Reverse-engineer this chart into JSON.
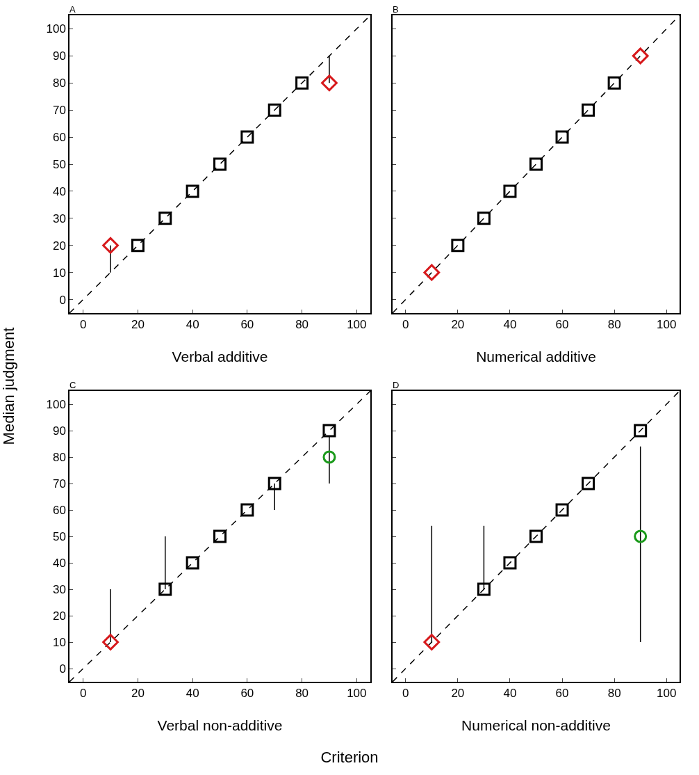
{
  "chart_data": [
    {
      "type": "scatter",
      "title": "A",
      "xlabel": "Verbal additive",
      "ylabel": "Median judgment",
      "xlim": [
        -5,
        105
      ],
      "ylim": [
        -5,
        105
      ],
      "xticks": [
        0,
        20,
        40,
        60,
        80,
        100
      ],
      "yticks": [
        0,
        10,
        20,
        30,
        40,
        50,
        60,
        70,
        80,
        90,
        100
      ],
      "series": [
        {
          "type": "line",
          "color": "#000000",
          "line_style": "dashed",
          "x": [
            -5,
            105
          ],
          "values": [
            -5,
            105
          ]
        },
        {
          "color": "#000000",
          "marker": "square",
          "x": [
            20,
            30,
            40,
            50,
            60,
            70,
            80
          ],
          "values": [
            20,
            30,
            40,
            50,
            60,
            70,
            80
          ]
        },
        {
          "color": "#d7191c",
          "marker": "diamond",
          "x": [
            10,
            90
          ],
          "values": [
            20,
            80
          ],
          "errors": [
            [
              10,
              20
            ],
            [
              80,
              90
            ]
          ]
        }
      ]
    },
    {
      "type": "scatter",
      "title": "B",
      "xlabel": "Numerical additive",
      "xlim": [
        -5,
        105
      ],
      "ylim": [
        -5,
        105
      ],
      "xticks": [
        0,
        20,
        40,
        60,
        80,
        100
      ],
      "yticks": [
        0,
        10,
        20,
        30,
        40,
        50,
        60,
        70,
        80,
        90,
        100
      ],
      "tick_labels": "x",
      "series": [
        {
          "type": "line",
          "color": "#000000",
          "line_style": "dashed",
          "x": [
            -5,
            105
          ],
          "values": [
            -5,
            105
          ]
        },
        {
          "color": "#000000",
          "marker": "square",
          "x": [
            20,
            30,
            40,
            50,
            60,
            70,
            80
          ],
          "values": [
            20,
            30,
            40,
            50,
            60,
            70,
            80
          ]
        },
        {
          "color": "#d7191c",
          "marker": "diamond",
          "x": [
            10,
            90
          ],
          "values": [
            10,
            90
          ]
        }
      ]
    },
    {
      "type": "scatter",
      "title": "C",
      "xlabel": "Verbal non-additive",
      "annotations": [
        "Criterion"
      ],
      "xlim": [
        -5,
        105
      ],
      "ylim": [
        -5,
        105
      ],
      "xticks": [
        0,
        20,
        40,
        60,
        80,
        100
      ],
      "yticks": [
        0,
        10,
        20,
        30,
        40,
        50,
        60,
        70,
        80,
        90,
        100
      ],
      "series": [
        {
          "type": "line",
          "color": "#000000",
          "line_style": "dashed",
          "x": [
            -5,
            105
          ],
          "values": [
            -5,
            105
          ]
        },
        {
          "color": "#000000",
          "marker": "square",
          "x": [
            30,
            40,
            50,
            60,
            70,
            90
          ],
          "values": [
            30,
            40,
            50,
            60,
            70,
            90
          ],
          "errors": [
            [
              30,
              50
            ],
            null,
            null,
            null,
            [
              60,
              70
            ],
            null
          ]
        },
        {
          "color": "#d7191c",
          "marker": "diamond",
          "x": [
            10
          ],
          "values": [
            10
          ],
          "errors": [
            [
              10,
              30
            ]
          ]
        },
        {
          "color": "#1a9a1a",
          "marker": "circle",
          "x": [
            90
          ],
          "values": [
            80
          ],
          "errors": [
            [
              70,
              88
            ]
          ]
        }
      ]
    },
    {
      "type": "scatter",
      "title": "D",
      "xlabel": "Numerical non-additive",
      "xlim": [
        -5,
        105
      ],
      "ylim": [
        -5,
        105
      ],
      "xticks": [
        0,
        20,
        40,
        60,
        80,
        100
      ],
      "yticks": [
        0,
        10,
        20,
        30,
        40,
        50,
        60,
        70,
        80,
        90,
        100
      ],
      "tick_labels": "x",
      "series": [
        {
          "type": "line",
          "color": "#000000",
          "line_style": "dashed",
          "x": [
            -5,
            105
          ],
          "values": [
            -5,
            105
          ]
        },
        {
          "color": "#000000",
          "marker": "square",
          "x": [
            30,
            40,
            50,
            60,
            70,
            90
          ],
          "values": [
            30,
            40,
            50,
            60,
            70,
            90
          ],
          "errors": [
            [
              30,
              54
            ],
            null,
            null,
            null,
            null,
            null
          ]
        },
        {
          "color": "#d7191c",
          "marker": "diamond",
          "x": [
            10
          ],
          "values": [
            10
          ],
          "errors": [
            [
              10,
              54
            ]
          ]
        },
        {
          "color": "#1a9a1a",
          "marker": "circle",
          "x": [
            90
          ],
          "values": [
            50
          ],
          "errors": [
            [
              10,
              84
            ]
          ]
        }
      ]
    }
  ]
}
